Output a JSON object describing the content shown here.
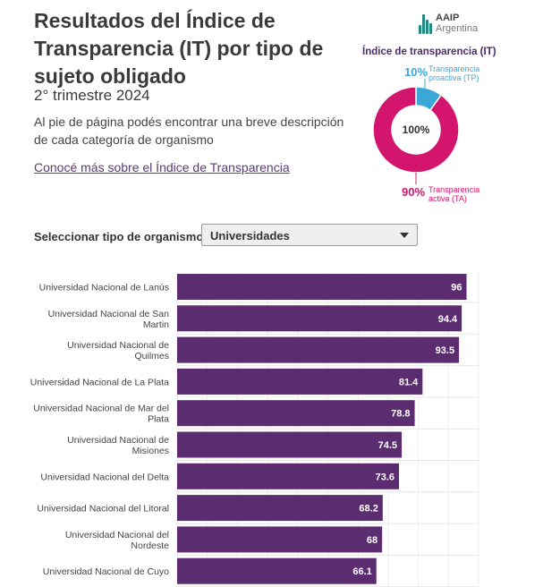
{
  "header": {
    "title": "Resultados del Índice de Transparencia (IT) por tipo de sujeto obligado",
    "subtitle": "2° trimestre 2024",
    "description": "Al pie de página podés encontrar una breve descripción de cada categoría de organismo",
    "link_text": "Conocé más sobre el Índice de Transparencia"
  },
  "logo": {
    "line1": "AAIP",
    "line2": "Argentina",
    "icon": "aaip-bars-icon",
    "color": "#1f8a80"
  },
  "donut": {
    "title": "Índice de transparencia (IT)",
    "center_label": "100%",
    "segments": [
      {
        "percent_label": "10%",
        "name_line1": "Transparencia",
        "name_line2": "proactiva (TP)",
        "value": 10,
        "color": "#3aa7d8"
      },
      {
        "percent_label": "90%",
        "name_line1": "Transparencia",
        "name_line2": "activa (TA)",
        "value": 90,
        "color": "#d4156e"
      }
    ]
  },
  "selector": {
    "label": "Seleccionar tipo de organismo",
    "value": "Universidades"
  },
  "chart_data": {
    "type": "bar",
    "orientation": "horizontal",
    "bar_color": "#5b2c6f",
    "xlim": [
      0,
      100
    ],
    "categories": [
      [
        "Universidad Nacional de Lanús"
      ],
      [
        "Universidad Nacional de San",
        "Martin"
      ],
      [
        "Universidad Nacional de",
        "Quilmes"
      ],
      [
        "Universidad Nacional de La Plata"
      ],
      [
        "Universidad Nacional de Mar del",
        "Plata"
      ],
      [
        "Universidad Nacional de",
        "Misiones"
      ],
      [
        "Universidad Nacional del Delta"
      ],
      [
        "Universidad Nacional del Litoral"
      ],
      [
        "Universidad Nacional del",
        "Nordeste"
      ],
      [
        "Universidad Nacional de Cuyo"
      ]
    ],
    "values": [
      96,
      94.4,
      93.5,
      81.4,
      78.8,
      74.5,
      73.6,
      68.2,
      68,
      66.1
    ],
    "value_labels": [
      "96",
      "94.4",
      "93.5",
      "81.4",
      "78.8",
      "74.5",
      "73.6",
      "68.2",
      "68",
      "66.1"
    ]
  }
}
